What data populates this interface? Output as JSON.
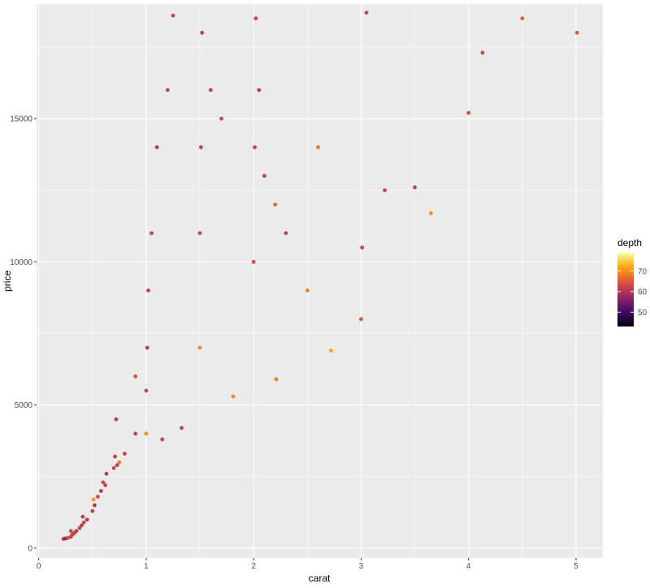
{
  "chart_data": {
    "type": "scatter",
    "title": "",
    "xlabel": "carat",
    "ylabel": "price",
    "xlim": [
      -0.02,
      5.25
    ],
    "ylim": [
      -340,
      19000
    ],
    "xticks": [
      0,
      1,
      2,
      3,
      4,
      5
    ],
    "xtick_labels": [
      "0",
      "1",
      "2",
      "3",
      "4",
      "5"
    ],
    "yticks": [
      0,
      5000,
      10000,
      15000
    ],
    "ytick_labels": [
      "0",
      "5000",
      "10000",
      "15000"
    ],
    "grid": true,
    "background": "#ebebeb",
    "gridline_color": "#ffffff",
    "color_variable": "depth",
    "legend": {
      "title": "depth",
      "position": "right",
      "range": [
        43,
        79
      ],
      "ticks": [
        50,
        60,
        70
      ],
      "tick_labels": [
        "50",
        "60",
        "70"
      ],
      "colormap": [
        "#000004",
        "#420a68",
        "#932667",
        "#dd513a",
        "#fca50a",
        "#fcffa4"
      ]
    },
    "series": [
      {
        "x": [
          0.23,
          0.25,
          0.27,
          0.3,
          0.31,
          0.33,
          0.35,
          0.38,
          0.4,
          0.42,
          0.45,
          0.5,
          0.52,
          0.55,
          0.58,
          0.6,
          0.63,
          0.7,
          0.71,
          0.72,
          0.75,
          0.8,
          0.9,
          0.9,
          1.0,
          1.0,
          1.01,
          1.02,
          1.05,
          1.1,
          1.2,
          1.25,
          1.5,
          1.5,
          1.51,
          1.52,
          1.6,
          1.7,
          2.0,
          2.01,
          2.02,
          2.05,
          2.1,
          2.2,
          2.3,
          2.5,
          2.6,
          3.0,
          3.01,
          3.05,
          3.22,
          3.5,
          3.65,
          4.0,
          4.13,
          4.5,
          5.01,
          0.3,
          0.41,
          0.51,
          0.62,
          0.73,
          1.15,
          1.33,
          1.81,
          2.21,
          2.72
        ],
        "y": [
          326,
          340,
          360,
          400,
          470,
          520,
          600,
          700,
          800,
          900,
          1000,
          1300,
          1500,
          1800,
          2000,
          2300,
          2600,
          2800,
          3200,
          4500,
          3000,
          3300,
          4000,
          6000,
          4000,
          5500,
          7000,
          9000,
          11000,
          14000,
          16000,
          18600,
          7000,
          11000,
          14000,
          18000,
          16000,
          15000,
          10000,
          14000,
          18500,
          16000,
          13000,
          12000,
          11000,
          9000,
          14000,
          8000,
          10500,
          18700,
          12500,
          12600,
          11700,
          15200,
          17300,
          18500,
          18000,
          600,
          1100,
          1700,
          2200,
          2900,
          3800,
          4200,
          5300,
          5900,
          6900
        ],
        "depth": [
          61.5,
          56.9,
          63.3,
          62.4,
          63.1,
          61.8,
          60.4,
          62.2,
          61.7,
          62.8,
          61.0,
          62.0,
          59.5,
          63.4,
          61.2,
          62.5,
          60.8,
          61.9,
          62.1,
          61.4,
          68.0,
          62.3,
          61.6,
          64.5,
          70.0,
          62.0,
          61.3,
          61.8,
          62.4,
          61.7,
          62.1,
          62.6,
          69.5,
          62.2,
          61.9,
          61.5,
          62.3,
          62.8,
          64.0,
          61.9,
          62.4,
          61.7,
          62.0,
          66.5,
          62.2,
          69.0,
          67.5,
          65.0,
          63.0,
          62.8,
          62.1,
          61.5,
          70.5,
          64.0,
          63.3,
          65.8,
          65.5,
          63.0,
          61.4,
          71.0,
          62.2,
          61.8,
          62.5,
          61.6,
          69.2,
          68.4,
          71.5
        ]
      }
    ]
  }
}
